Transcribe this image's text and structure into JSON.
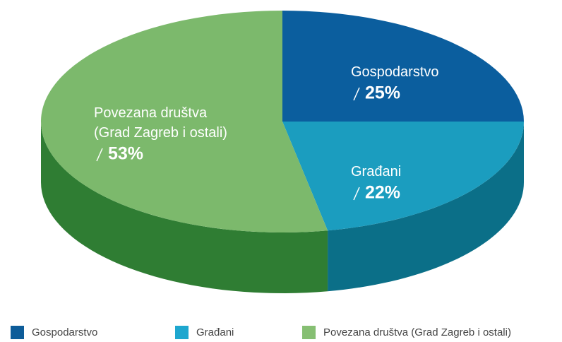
{
  "chart_data": {
    "type": "pie3d",
    "categories": [
      "Gospodarstvo",
      "Građani",
      "Povezana društva (Grad Zagreb i ostali)"
    ],
    "values": [
      25,
      22,
      53
    ],
    "value_labels": [
      "25%",
      "22%",
      "53%"
    ],
    "colors": [
      "#0b5e9e",
      "#1b9dbf",
      "#7cb96c"
    ],
    "side_colors": [
      "#0a4f80",
      "#0b6f88",
      "#2f7d33"
    ],
    "legend_colors": [
      "#0d5c99",
      "#1ea7cf",
      "#86bf73"
    ],
    "legend": "bottom"
  }
}
